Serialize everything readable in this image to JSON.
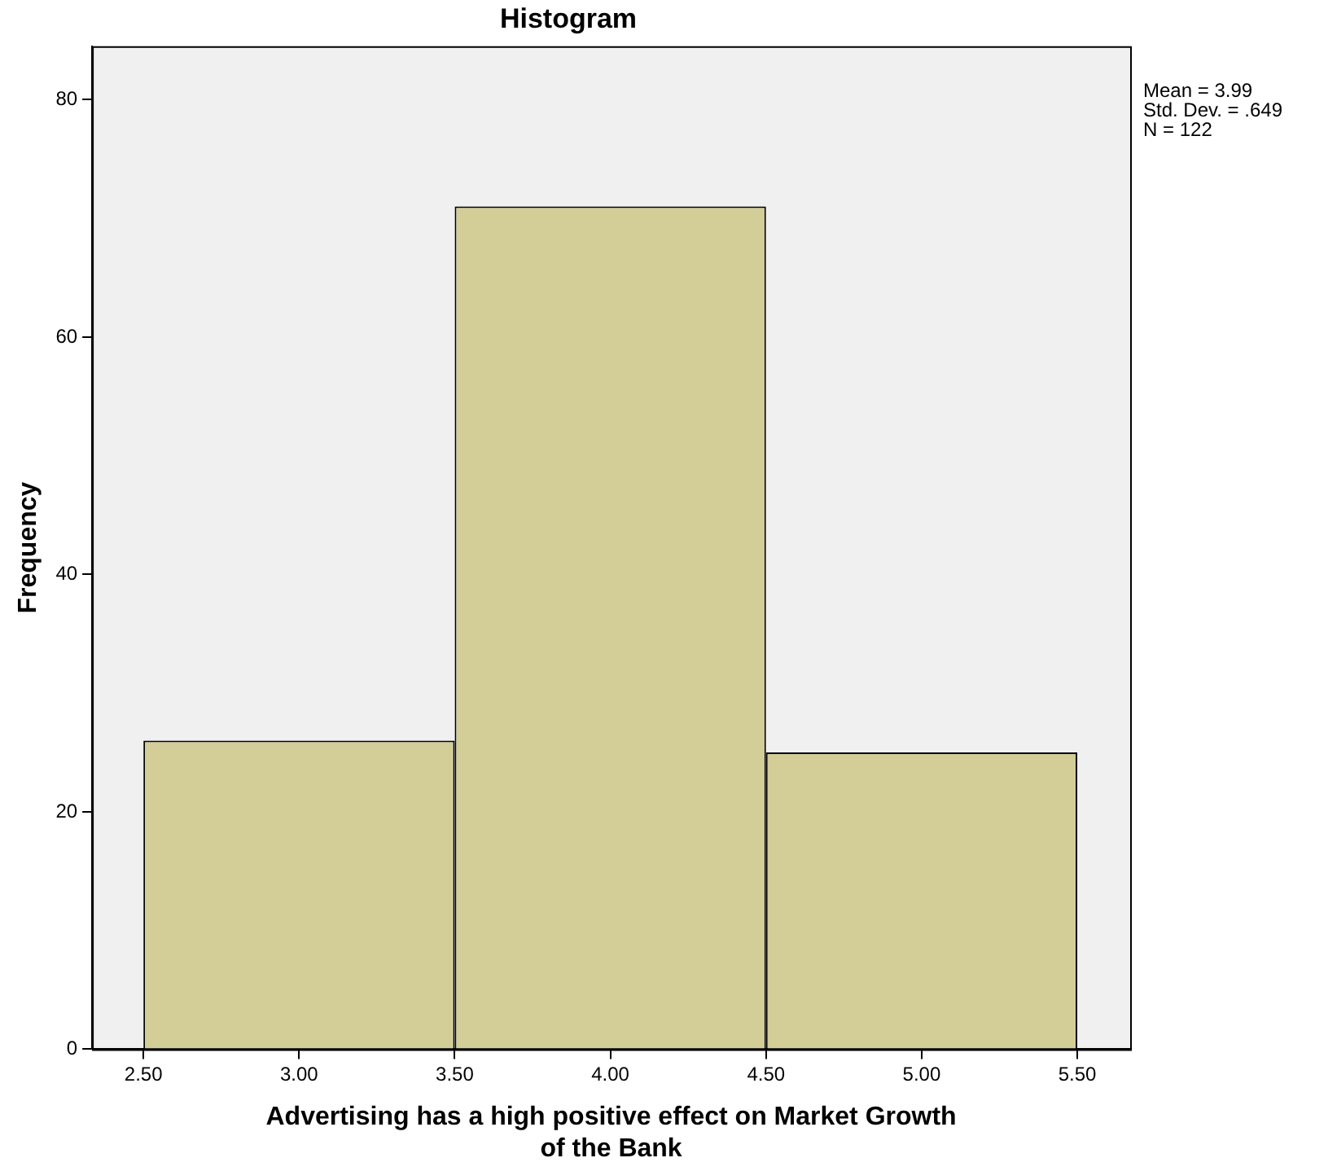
{
  "chart_data": {
    "type": "histogram",
    "title": "Histogram",
    "xlabel": "Advertising has a high positive effect on Market Growth of the Bank",
    "ylabel": "Frequency",
    "bins": [
      2.5,
      3.5,
      4.5,
      5.5
    ],
    "values": [
      26,
      71,
      25
    ],
    "color": "#d3ce97",
    "xlim": [
      2.335,
      5.67
    ],
    "ylim": [
      0,
      84.5
    ],
    "xticks": [
      {
        "value": 2.5,
        "label": "2.50"
      },
      {
        "value": 3,
        "label": "3.00"
      },
      {
        "value": 3.5,
        "label": "3.50"
      },
      {
        "value": 4,
        "label": "4.00"
      },
      {
        "value": 4.5,
        "label": "4.50"
      },
      {
        "value": 5,
        "label": "5.00"
      },
      {
        "value": 5.5,
        "label": "5.50"
      }
    ],
    "yticks": [
      0,
      20,
      40,
      60,
      80
    ],
    "annotations": [
      "Mean = 3.99",
      "Std. Dev. = .649",
      "N = 122"
    ]
  }
}
